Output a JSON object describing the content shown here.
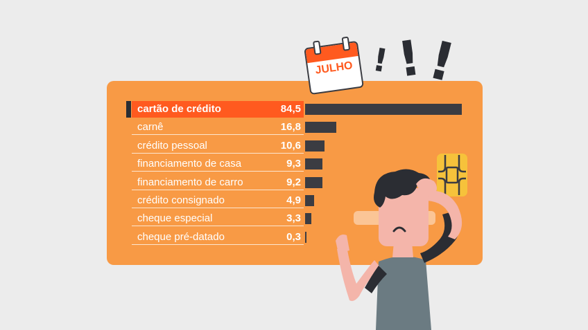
{
  "calendar": {
    "month": "JULHO"
  },
  "exclamations": [
    "!",
    "!",
    "!"
  ],
  "colors": {
    "background": "#ececec",
    "card": "#f89a45",
    "highlight": "#ff5a1f",
    "bar": "#3b3c42"
  },
  "chart_data": {
    "type": "bar",
    "orientation": "horizontal",
    "categories": [
      "cartão de crédito",
      "carnê",
      "crédito pessoal",
      "financiamento de casa",
      "financiamento de carro",
      "crédito consignado",
      "cheque especial",
      "cheque pré-datado"
    ],
    "value_labels": [
      "84,5",
      "16,8",
      "10,6",
      "9,3",
      "9,2",
      "4,9",
      "3,3",
      "0,3"
    ],
    "values": [
      84.5,
      16.8,
      10.6,
      9.3,
      9.2,
      4.9,
      3.3,
      0.3
    ],
    "highlighted_category": "cartão de crédito",
    "grid": false,
    "legend": "none"
  }
}
